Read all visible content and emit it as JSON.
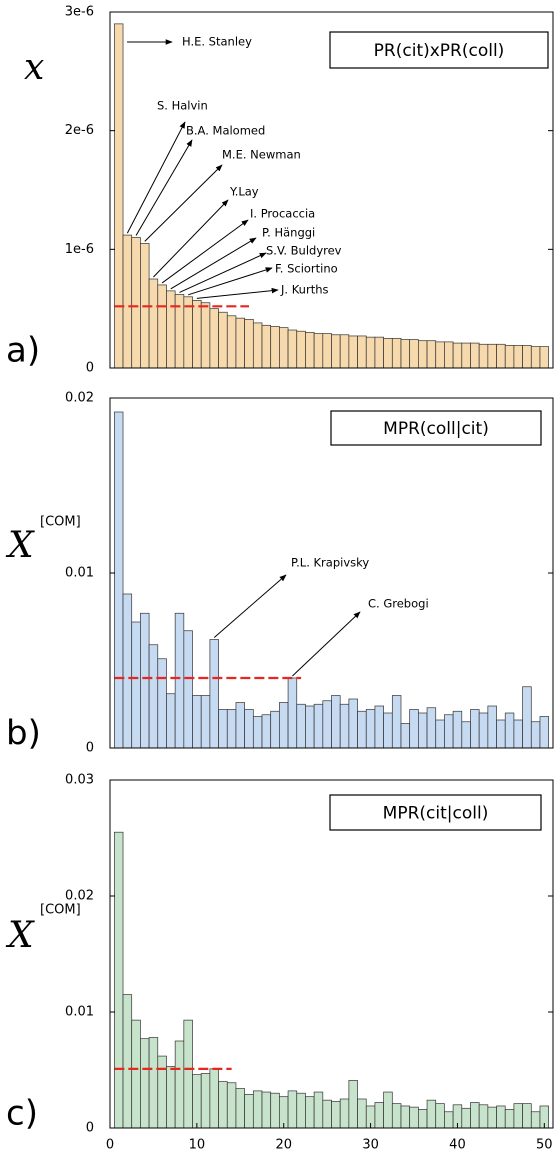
{
  "chart_data": [
    {
      "type": "bar",
      "panel_label": "a)",
      "title": "PR(cit)xPR(coll)",
      "ylabel": "x",
      "color": "#f6d9ad",
      "x": [
        1,
        2,
        3,
        4,
        5,
        6,
        7,
        8,
        9,
        10,
        11,
        12,
        13,
        14,
        15,
        16,
        17,
        18,
        19,
        20,
        21,
        22,
        23,
        24,
        25,
        26,
        27,
        28,
        29,
        30,
        31,
        32,
        33,
        34,
        35,
        36,
        37,
        38,
        39,
        40,
        41,
        42,
        43,
        44,
        45,
        46,
        47,
        48,
        49,
        50
      ],
      "values": [
        2.9e-06,
        1.12e-06,
        1.1e-06,
        1.05e-06,
        7.5e-07,
        7e-07,
        6.5e-07,
        6.2e-07,
        6e-07,
        5.7e-07,
        5.5e-07,
        5e-07,
        4.7e-07,
        4.4e-07,
        4.2e-07,
        4.1e-07,
        3.8e-07,
        3.6e-07,
        3.5e-07,
        3.4e-07,
        3.2e-07,
        3.1e-07,
        3e-07,
        2.9e-07,
        2.9e-07,
        2.8e-07,
        2.8e-07,
        2.7e-07,
        2.7e-07,
        2.6e-07,
        2.6e-07,
        2.5e-07,
        2.5e-07,
        2.4e-07,
        2.4e-07,
        2.3e-07,
        2.3e-07,
        2.2e-07,
        2.2e-07,
        2.1e-07,
        2.1e-07,
        2.1e-07,
        2e-07,
        2e-07,
        2e-07,
        1.9e-07,
        1.9e-07,
        1.9e-07,
        1.8e-07,
        1.8e-07
      ],
      "xlim": [
        0,
        51
      ],
      "ylim": [
        0,
        3e-06
      ],
      "yticks": [
        0,
        {
          "value": 1e-06,
          "label": "1e-6"
        },
        {
          "value": 2e-06,
          "label": "2e-6"
        },
        {
          "value": 3e-06,
          "label": "3e-6"
        }
      ],
      "threshold": {
        "value": 5.2e-07,
        "end": 16,
        "color": "#e8251f"
      },
      "annotations": [
        "H.E. Stanley",
        "S. Halvin",
        "B.A. Malomed",
        "M.E. Newman",
        "Y.Lay",
        "I. Procaccia",
        "P. Hänggi",
        "S.V. Buldyrev",
        "F. Sciortino",
        "J. Kurths"
      ]
    },
    {
      "type": "bar",
      "panel_label": "b)",
      "title": "MPR(coll|cit)",
      "ylabel": "X",
      "ylabel_sup": "[COM]",
      "color": "#c6daf2",
      "x": [
        1,
        2,
        3,
        4,
        5,
        6,
        7,
        8,
        9,
        10,
        11,
        12,
        13,
        14,
        15,
        16,
        17,
        18,
        19,
        20,
        21,
        22,
        23,
        24,
        25,
        26,
        27,
        28,
        29,
        30,
        31,
        32,
        33,
        34,
        35,
        36,
        37,
        38,
        39,
        40,
        41,
        42,
        43,
        44,
        45,
        46,
        47,
        48,
        49,
        50
      ],
      "values": [
        0.0192,
        0.0088,
        0.0072,
        0.0077,
        0.0059,
        0.0051,
        0.0031,
        0.0077,
        0.0067,
        0.003,
        0.003,
        0.0062,
        0.0022,
        0.0022,
        0.0026,
        0.0022,
        0.0018,
        0.0019,
        0.0021,
        0.0026,
        0.004,
        0.0025,
        0.0024,
        0.0025,
        0.0027,
        0.003,
        0.0025,
        0.0028,
        0.0021,
        0.0022,
        0.0024,
        0.002,
        0.003,
        0.0014,
        0.0022,
        0.002,
        0.0023,
        0.0016,
        0.0019,
        0.0021,
        0.0015,
        0.0022,
        0.002,
        0.0024,
        0.0016,
        0.002,
        0.0016,
        0.0035,
        0.0015,
        0.0018
      ],
      "xlim": [
        0,
        51
      ],
      "ylim": [
        0,
        0.02
      ],
      "yticks": [
        0,
        0.01,
        0.02
      ],
      "threshold": {
        "value": 0.004,
        "end": 22,
        "color": "#e8251f"
      },
      "annotations": [
        "P.L. Krapivsky",
        "C. Grebogi"
      ]
    },
    {
      "type": "bar",
      "panel_label": "c)",
      "title": "MPR(cit|coll)",
      "ylabel": "X",
      "ylabel_sup": "[COM]",
      "color": "#c7e3cb",
      "x": [
        1,
        2,
        3,
        4,
        5,
        6,
        7,
        8,
        9,
        10,
        11,
        12,
        13,
        14,
        15,
        16,
        17,
        18,
        19,
        20,
        21,
        22,
        23,
        24,
        25,
        26,
        27,
        28,
        29,
        30,
        31,
        32,
        33,
        34,
        35,
        36,
        37,
        38,
        39,
        40,
        41,
        42,
        43,
        44,
        45,
        46,
        47,
        48,
        49,
        50
      ],
      "values": [
        0.0255,
        0.0115,
        0.0093,
        0.0077,
        0.0078,
        0.0062,
        0.0053,
        0.0075,
        0.0093,
        0.0046,
        0.0047,
        0.0051,
        0.004,
        0.0039,
        0.0034,
        0.0029,
        0.0032,
        0.0031,
        0.003,
        0.0027,
        0.0032,
        0.003,
        0.0027,
        0.0031,
        0.0024,
        0.0023,
        0.0025,
        0.0041,
        0.0025,
        0.0019,
        0.0022,
        0.0031,
        0.0021,
        0.0019,
        0.0018,
        0.0016,
        0.0024,
        0.0021,
        0.0014,
        0.002,
        0.0017,
        0.0022,
        0.002,
        0.0018,
        0.0019,
        0.0016,
        0.0021,
        0.0021,
        0.0014,
        0.0019
      ],
      "xlim": [
        0,
        51
      ],
      "ylim": [
        0,
        0.03
      ],
      "yticks": [
        0,
        0.01,
        0.02,
        0.03
      ],
      "xticks": [
        0,
        10,
        20,
        30,
        40,
        50
      ],
      "threshold": {
        "value": 0.0051,
        "end": 14,
        "color": "#e8251f"
      }
    }
  ]
}
